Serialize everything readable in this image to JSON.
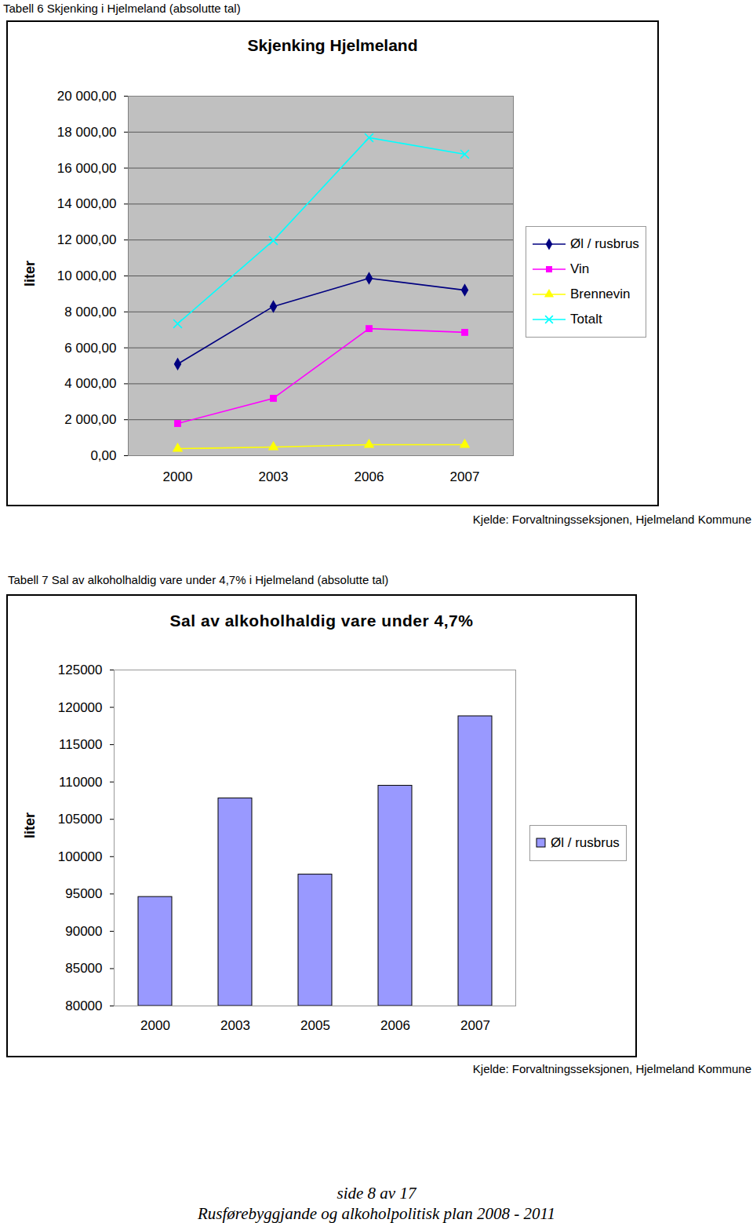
{
  "chart_data": [
    {
      "type": "line",
      "caption": "Tabell 6 Skjenking i Hjelmeland (absolutte tal)",
      "title": "Skjenking Hjelmeland",
      "ylabel": "liter",
      "categories": [
        "2000",
        "2003",
        "2006",
        "2007"
      ],
      "series": [
        {
          "name": "Øl / rusbrus",
          "color": "#000080",
          "marker": "diamond",
          "values": [
            5100,
            8300,
            9870,
            9210
          ]
        },
        {
          "name": "Vin",
          "color": "#ff00ff",
          "marker": "square",
          "values": [
            1790,
            3190,
            7070,
            6860
          ]
        },
        {
          "name": "Brennevin",
          "color": "#ffff00",
          "marker": "triangle",
          "values": [
            390,
            480,
            610,
            610
          ]
        },
        {
          "name": "Totalt",
          "color": "#00ffff",
          "marker": "x",
          "values": [
            7340,
            11970,
            17690,
            16770
          ]
        }
      ],
      "ylim": [
        0,
        20000
      ],
      "yticks": [
        {
          "value": 0,
          "label": "0,00"
        },
        {
          "value": 2000,
          "label": "2 000,00"
        },
        {
          "value": 4000,
          "label": "4 000,00"
        },
        {
          "value": 6000,
          "label": "6 000,00"
        },
        {
          "value": 8000,
          "label": "8 000,00"
        },
        {
          "value": 10000,
          "label": "10 000,00"
        },
        {
          "value": 12000,
          "label": "12 000,00"
        },
        {
          "value": 14000,
          "label": "14 000,00"
        },
        {
          "value": 16000,
          "label": "16 000,00"
        },
        {
          "value": 18000,
          "label": "18 000,00"
        },
        {
          "value": 20000,
          "label": "20 000,00"
        }
      ],
      "grid": true,
      "legend": "right",
      "source": "Kjelde: Forvaltningsseksjonen, Hjelmeland Kommune"
    },
    {
      "type": "bar",
      "caption": "Tabell 7 Sal av alkoholhaldig vare under 4,7%  i Hjelmeland (absolutte tal)",
      "title": "Sal av alkoholhaldig vare under 4,7%",
      "ylabel": "liter",
      "categories": [
        "2000",
        "2003",
        "2005",
        "2006",
        "2007"
      ],
      "series": [
        {
          "name": "Øl / rusbrus",
          "color": "#9999ff",
          "values": [
            94600,
            107800,
            97600,
            109500,
            118800
          ]
        }
      ],
      "ylim": [
        80000,
        125000
      ],
      "yticks": [
        80000,
        85000,
        90000,
        95000,
        100000,
        105000,
        110000,
        115000,
        120000,
        125000
      ],
      "grid": false,
      "legend": "right",
      "source": "Kjelde: Forvaltningsseksjonen, Hjelmeland Kommune"
    }
  ],
  "page": {
    "footer": [
      "side 8 av 17",
      "Rusførebyggjande og alkoholpolitisk plan 2008 - 2011"
    ]
  }
}
